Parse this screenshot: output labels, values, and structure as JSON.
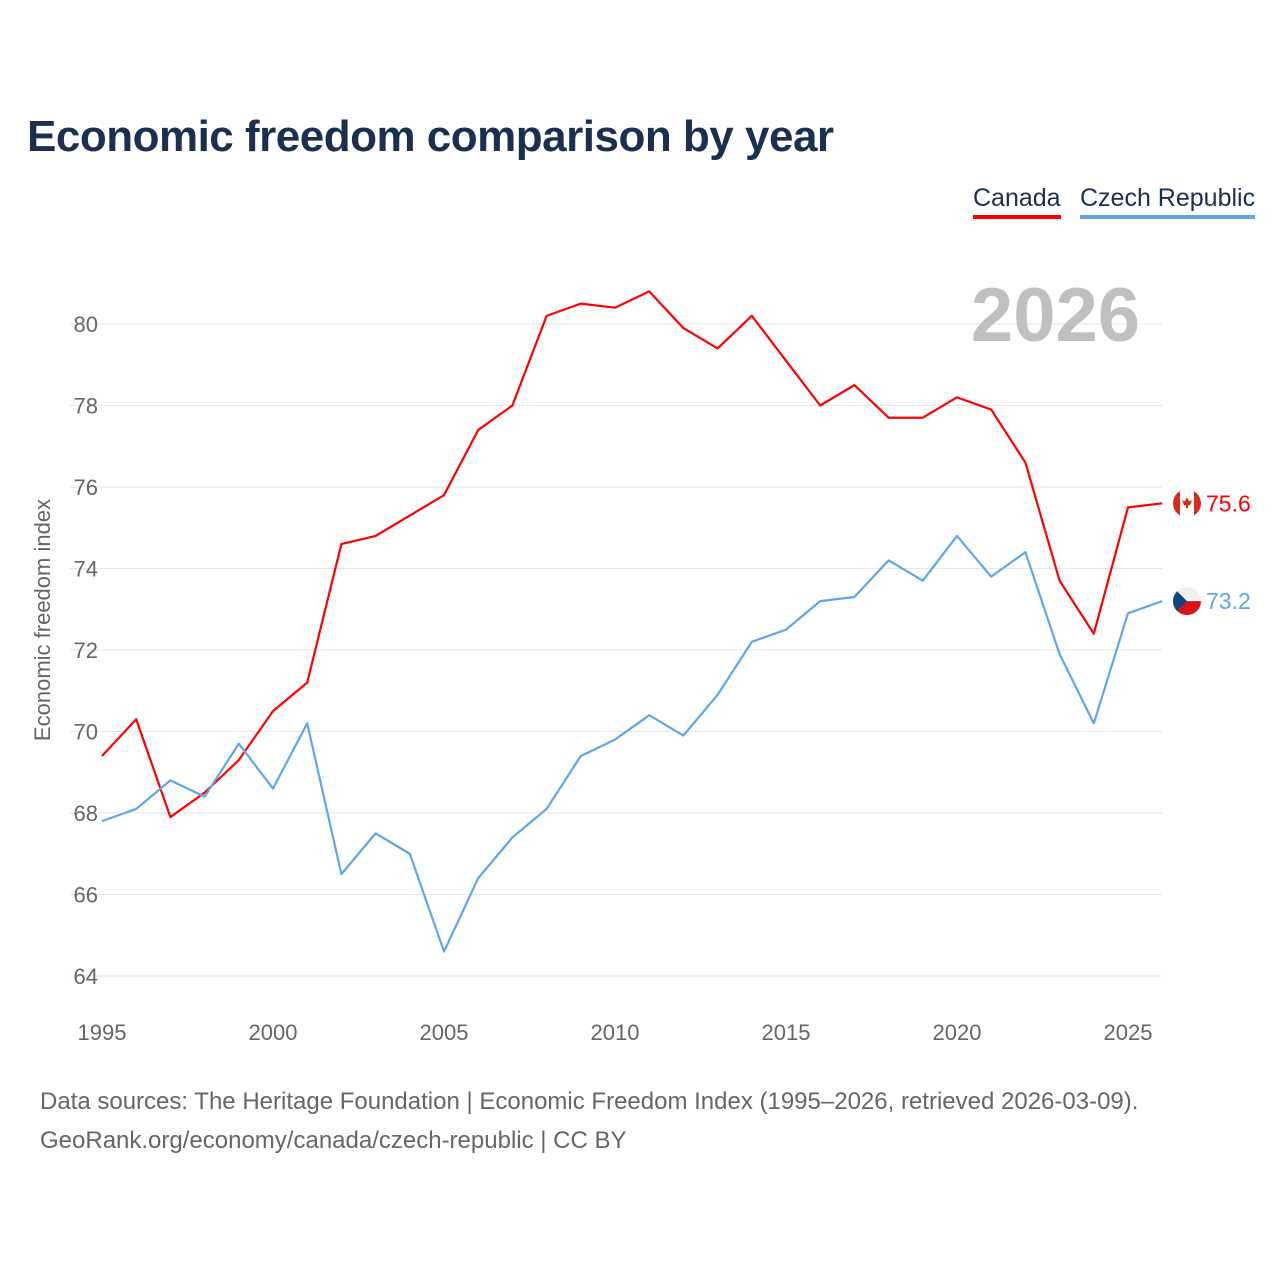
{
  "chart_data": {
    "type": "line",
    "title": "Economic freedom comparison by year",
    "ylabel": "Economic freedom index",
    "xlabel": "",
    "ylim": [
      63,
      82
    ],
    "xlim": [
      1995,
      2026
    ],
    "yticks": [
      64,
      66,
      68,
      70,
      72,
      74,
      76,
      78,
      80
    ],
    "xticks": [
      1995,
      2000,
      2005,
      2010,
      2015,
      2020,
      2025
    ],
    "grid": true,
    "legend_position": "top-right",
    "year_watermark": "2026",
    "x": [
      1995,
      1996,
      1997,
      1998,
      1999,
      2000,
      2001,
      2002,
      2003,
      2004,
      2005,
      2006,
      2007,
      2008,
      2009,
      2010,
      2011,
      2012,
      2013,
      2014,
      2015,
      2016,
      2017,
      2018,
      2019,
      2020,
      2021,
      2022,
      2023,
      2024,
      2025,
      2026
    ],
    "series": [
      {
        "name": "Canada",
        "color": "#ff0000",
        "end_label": "75.6",
        "flag": "canada-flag",
        "values": [
          69.4,
          70.3,
          67.9,
          68.5,
          69.3,
          70.5,
          71.2,
          74.6,
          74.8,
          75.3,
          75.8,
          77.4,
          78.0,
          80.2,
          80.5,
          80.4,
          80.8,
          79.9,
          79.4,
          80.2,
          79.1,
          78.0,
          78.5,
          77.7,
          77.7,
          78.2,
          77.9,
          76.6,
          73.7,
          72.4,
          75.5,
          75.6
        ]
      },
      {
        "name": "Czech Republic",
        "color": "#5ea6ea",
        "end_label": "73.2",
        "flag": "czech-flag",
        "values": [
          67.8,
          68.1,
          68.8,
          68.4,
          69.7,
          68.6,
          70.2,
          66.5,
          67.5,
          67.0,
          64.6,
          66.4,
          67.4,
          68.1,
          69.4,
          69.8,
          70.4,
          69.9,
          70.9,
          72.2,
          72.5,
          73.2,
          73.3,
          74.2,
          73.7,
          74.8,
          73.8,
          74.4,
          71.9,
          70.2,
          72.9,
          73.2
        ]
      }
    ]
  },
  "footer": {
    "line1": "Data sources: The Heritage Foundation | Economic Freedom Index (1995–2026, retrieved 2026-03-09).",
    "line2": "GeoRank.org/economy/canada/czech-republic | CC BY"
  }
}
